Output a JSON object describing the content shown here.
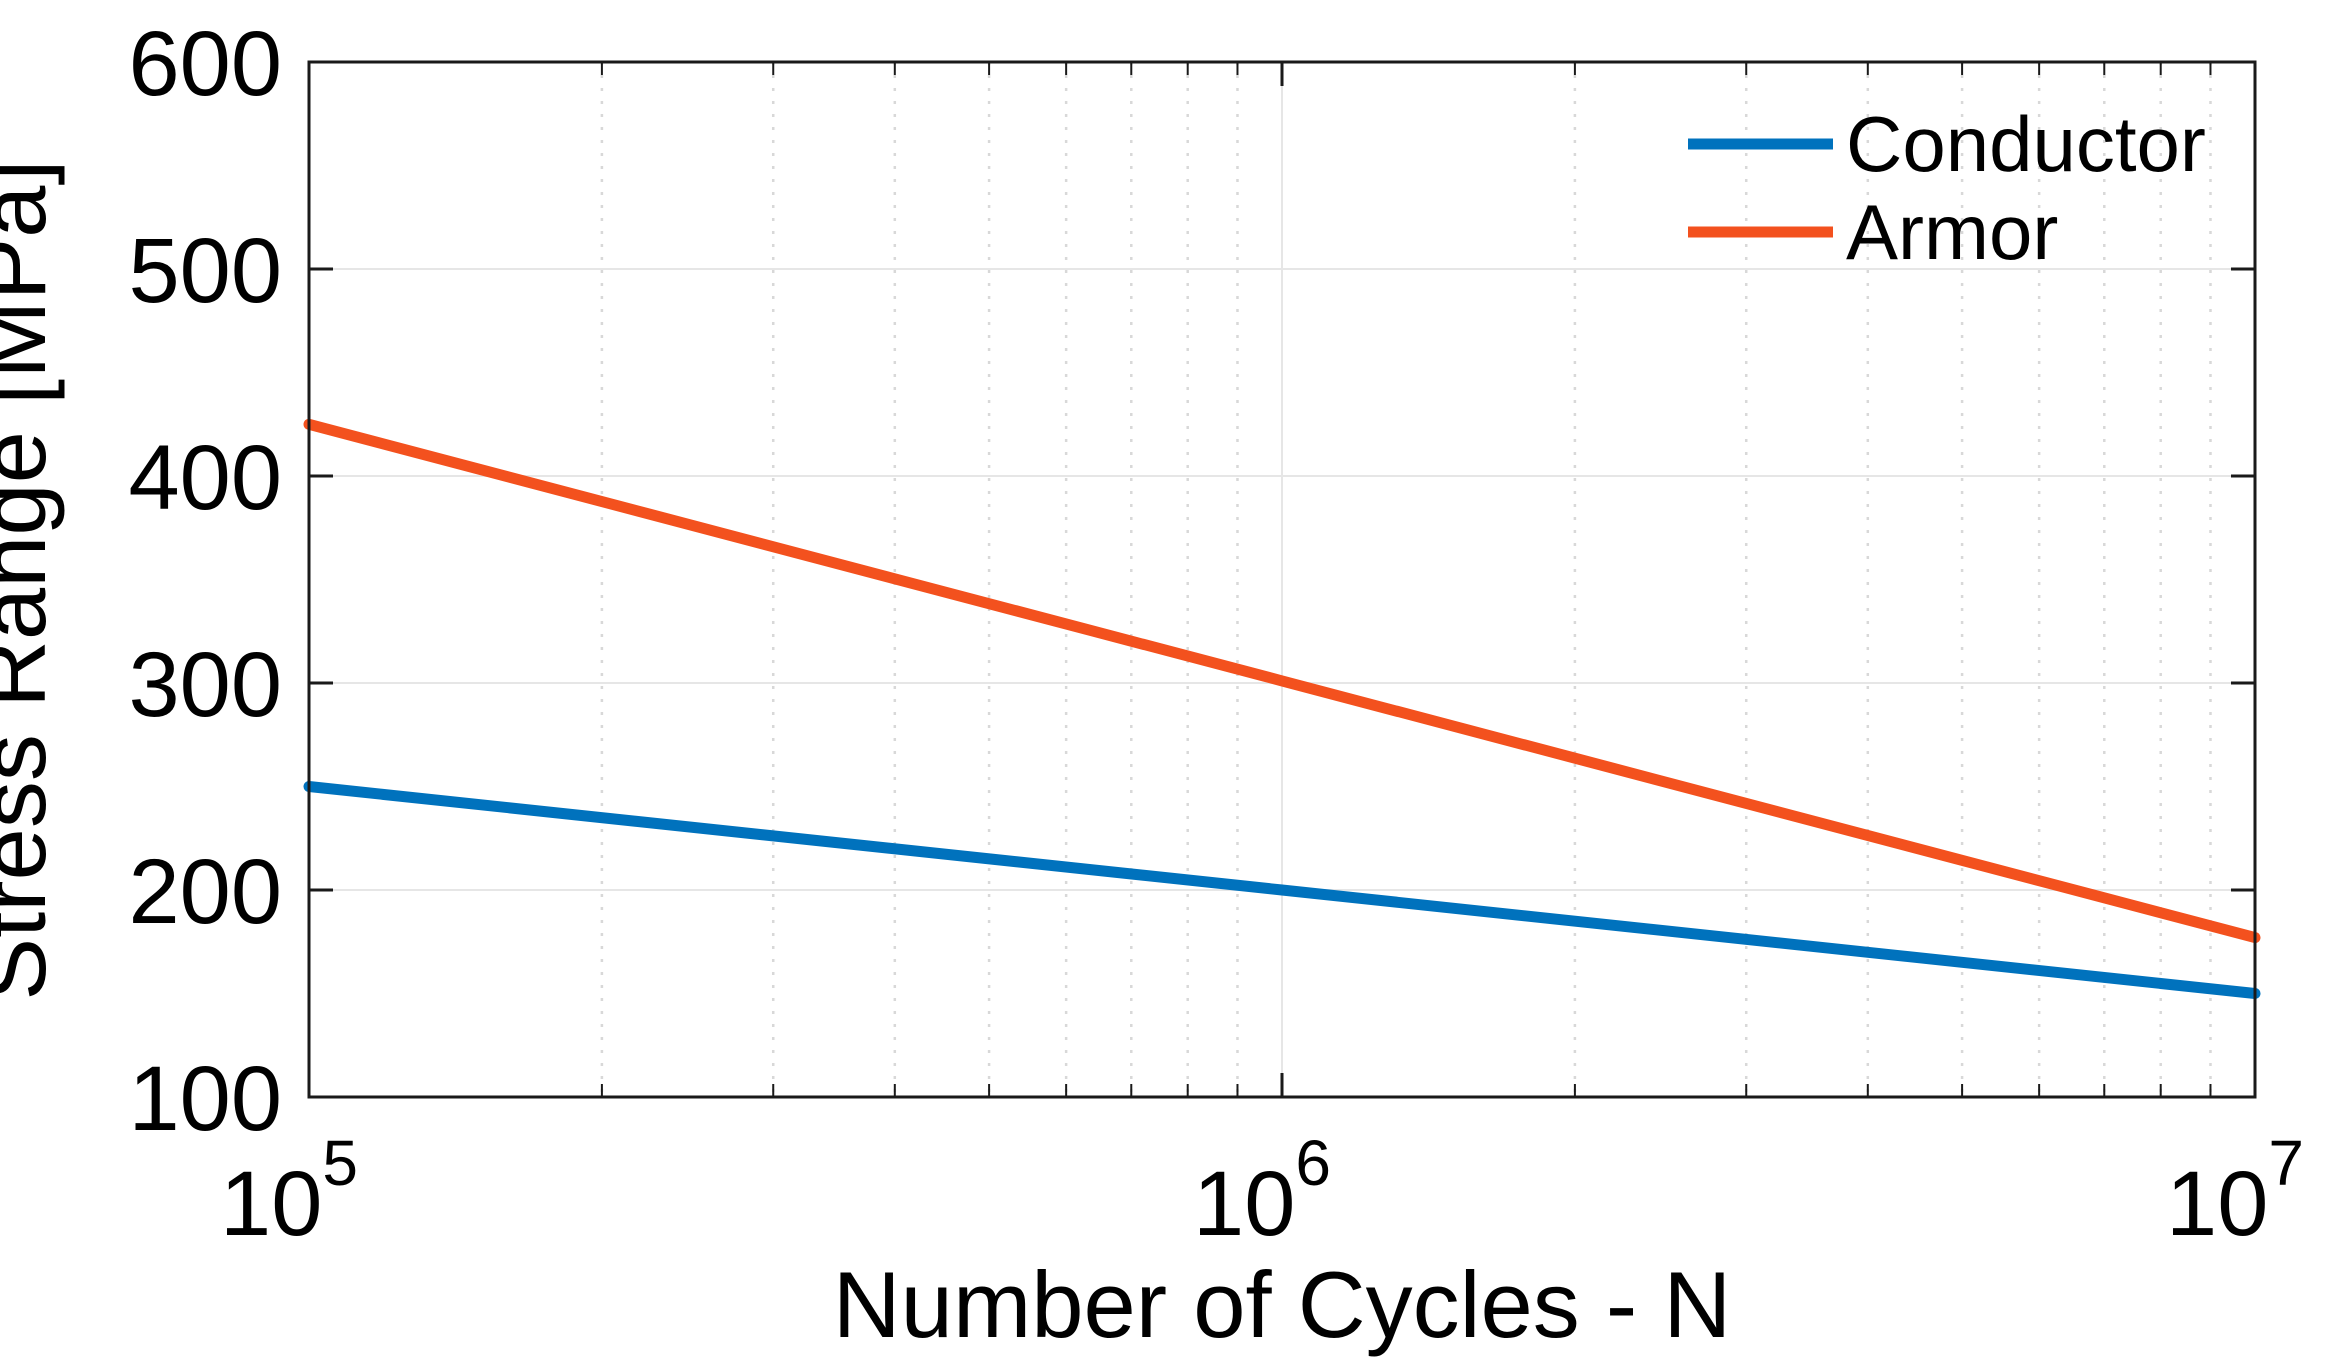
{
  "figure": {
    "background_color": "#FFFFFF",
    "axis_color": "#1A1A1A",
    "text_color": "#000000",
    "grid_major_color": "#E6E6E6",
    "grid_minor_color": "#D8D8D8"
  },
  "chart_data": {
    "type": "line",
    "x_scale": "log10",
    "x": [
      100000,
      1000000,
      10000000
    ],
    "series": [
      {
        "name": "Conductor",
        "color": "#0072BD",
        "values": [
          250,
          200,
          150
        ]
      },
      {
        "name": "Armor",
        "color": "#F3511E",
        "values": [
          425,
          301,
          177
        ]
      }
    ],
    "title": "",
    "xlabel": "Number of Cycles - N",
    "ylabel": "Stress Range [MPa]",
    "xlim": [
      100000,
      10000000
    ],
    "ylim": [
      100,
      600
    ],
    "yticks": [
      100,
      200,
      300,
      400,
      500,
      600
    ],
    "xticks": [
      {
        "value": 100000,
        "label_base": "10",
        "label_exp": "5"
      },
      {
        "value": 1000000,
        "label_base": "10",
        "label_exp": "6"
      },
      {
        "value": 10000000,
        "label_base": "10",
        "label_exp": "7"
      }
    ],
    "grid": {
      "horizontal_major": "solid",
      "vertical_major": "solid",
      "vertical_minor": "dotted",
      "minor_multiples_per_decade": [
        2,
        3,
        4,
        5,
        6,
        7,
        8,
        9
      ]
    },
    "legend": {
      "position": "top-right",
      "frame": false
    }
  }
}
